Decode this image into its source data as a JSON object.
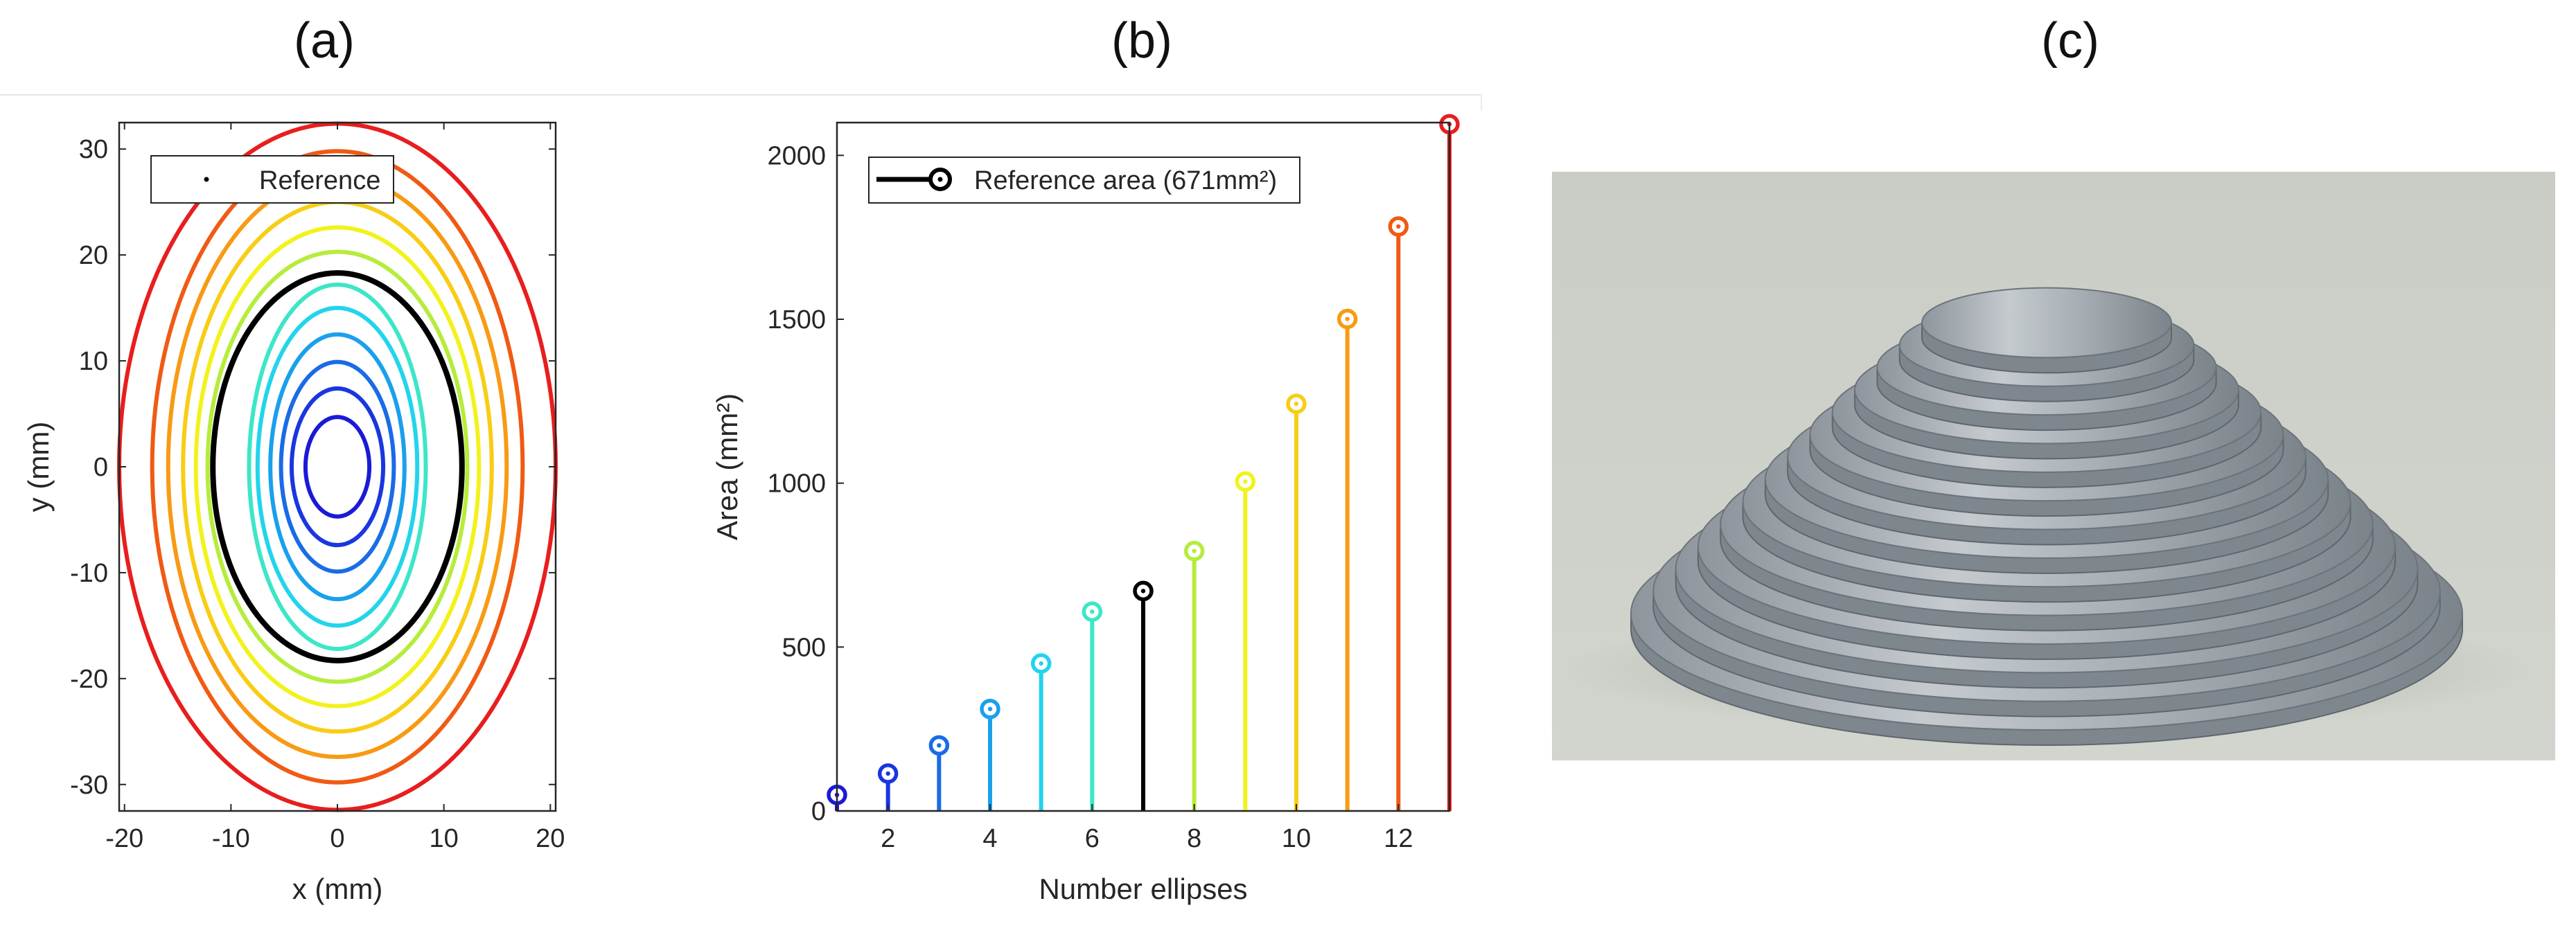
{
  "panels": {
    "a": "(a)",
    "b": "(b)",
    "c": "(c)"
  },
  "chart_data": [
    {
      "type": "line",
      "title": "",
      "xlabel": "x (mm)",
      "ylabel": "y (mm)",
      "xlim": [
        -20.5,
        20.5
      ],
      "ylim": [
        -32.5,
        32.5
      ],
      "xticks": [
        -20,
        -10,
        0,
        10,
        20
      ],
      "yticks": [
        -30,
        -20,
        -10,
        0,
        10,
        20,
        30
      ],
      "legend": {
        "label": "Reference",
        "location": "top-left"
      },
      "series": [
        {
          "name": "ellipse 1",
          "rx": 3.0,
          "ry": 4.7,
          "color": "#1a1ad6"
        },
        {
          "name": "ellipse 2",
          "rx": 4.3,
          "ry": 7.4,
          "color": "#1a36e0"
        },
        {
          "name": "ellipse 3",
          "rx": 5.3,
          "ry": 9.9,
          "color": "#1a6be6"
        },
        {
          "name": "ellipse 4",
          "rx": 6.3,
          "ry": 12.5,
          "color": "#1aa0ec"
        },
        {
          "name": "ellipse 5",
          "rx": 7.5,
          "ry": 15.0,
          "color": "#22d4ec"
        },
        {
          "name": "ellipse 6",
          "rx": 8.3,
          "ry": 17.2,
          "color": "#3de6c8"
        },
        {
          "name": "Reference",
          "rx": 11.7,
          "ry": 18.3,
          "color": "#000000",
          "reference": true
        },
        {
          "name": "ellipse 8",
          "rx": 12.2,
          "ry": 20.3,
          "color": "#b6ec3c"
        },
        {
          "name": "ellipse 9",
          "rx": 13.3,
          "ry": 22.6,
          "color": "#f2f21c"
        },
        {
          "name": "ellipse 10",
          "rx": 14.5,
          "ry": 25.0,
          "color": "#f8cd14"
        },
        {
          "name": "ellipse 11",
          "rx": 15.9,
          "ry": 27.4,
          "color": "#f89a14"
        },
        {
          "name": "ellipse 12",
          "rx": 17.4,
          "ry": 29.8,
          "color": "#f05a14"
        },
        {
          "name": "ellipse 13",
          "rx": 20.5,
          "ry": 32.4,
          "color": "#e81e1e"
        }
      ]
    },
    {
      "type": "bar",
      "subtype": "stem",
      "title": "",
      "xlabel": "Number ellipses",
      "ylabel": "Area (mm²)",
      "xlim": [
        1,
        13
      ],
      "ylim": [
        0,
        2100
      ],
      "xticks": [
        2,
        4,
        6,
        8,
        10,
        12
      ],
      "yticks": [
        0,
        500,
        1000,
        1500,
        2000
      ],
      "legend": {
        "label": "Reference area (671mm²)",
        "location": "top-left"
      },
      "x": [
        1,
        2,
        3,
        4,
        5,
        6,
        7,
        8,
        9,
        10,
        11,
        12,
        13
      ],
      "values": [
        49,
        114,
        200,
        311,
        450,
        608,
        671,
        793,
        1005,
        1242,
        1501,
        1783,
        2095
      ],
      "colors": [
        "#1a1ad6",
        "#1a36e0",
        "#1a6be6",
        "#1aa0ec",
        "#22d4ec",
        "#3de6c8",
        "#000000",
        "#b6ec3c",
        "#f2f21c",
        "#f8cd14",
        "#f89a14",
        "#f05a14",
        "#e81e1e"
      ]
    }
  ]
}
